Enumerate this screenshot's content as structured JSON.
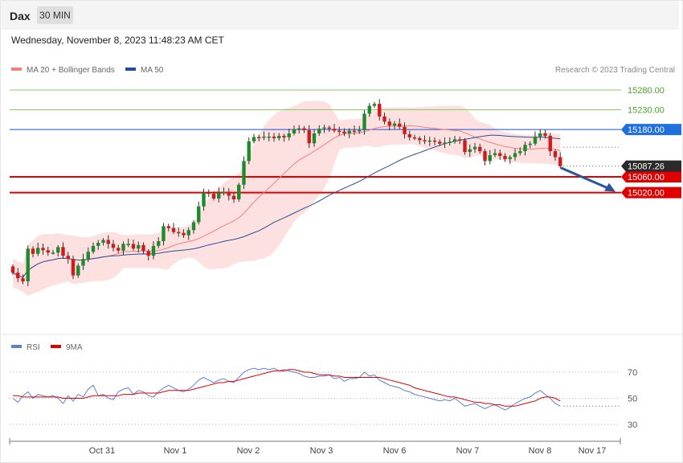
{
  "header": {
    "symbol": "Dax",
    "timeframe": "30 MIN"
  },
  "datetime": "Wednesday, November 8, 2023 11:48:23 AM CET",
  "credit": "Research © 2023 Trading Central",
  "legend_main": [
    {
      "label": "MA 20 + Bollinger Bands",
      "color": "#f08080"
    },
    {
      "label": "MA 50",
      "color": "#1f4e9c"
    }
  ],
  "legend_rsi": [
    {
      "label": "RSI",
      "color": "#5b7fd6"
    },
    {
      "label": "9MA",
      "color": "#e00000"
    }
  ],
  "colors": {
    "up": "#1e8a2e",
    "down": "#d21a1a",
    "band": "#fde0e0",
    "support": "#e00000",
    "resistance_green": "#8fca6a",
    "resistance_blue": "#1f4fd0"
  },
  "chart_data": [
    {
      "type": "candlestick",
      "x_ticks": [
        "Oct 31",
        "Nov 1",
        "Nov 2",
        "Nov 3",
        "Nov 6",
        "Nov 7",
        "Nov 8",
        "Nov 17"
      ],
      "ylim": [
        14760,
        15330
      ],
      "levels": [
        {
          "value": 15280,
          "label": "15280.00",
          "kind": "resistance"
        },
        {
          "value": 15230,
          "label": "15230.00",
          "kind": "resistance"
        },
        {
          "value": 15180,
          "label": "15180.00",
          "kind": "pivot"
        },
        {
          "value": 15060,
          "label": "15060.00",
          "kind": "support"
        },
        {
          "value": 15020,
          "label": "15020.00",
          "kind": "support"
        }
      ],
      "last_price": {
        "value": 15087.26,
        "label": "15087.26"
      },
      "forecast_arrow": {
        "from": 15087,
        "to": 15020
      },
      "closes": [
        14817,
        14803,
        14795,
        14878,
        14865,
        14880,
        14874,
        14868,
        14868,
        14882,
        14860,
        14852,
        14810,
        14835,
        14852,
        14870,
        14885,
        14893,
        14900,
        14890,
        14880,
        14873,
        14890,
        14890,
        14878,
        14887,
        14872,
        14860,
        14885,
        14897,
        14935,
        14930,
        14920,
        14918,
        14912,
        14925,
        14945,
        14985,
        15020,
        15017,
        15005,
        15020,
        15022,
        15012,
        15003,
        15040,
        15100,
        15150,
        15161,
        15160,
        15162,
        15162,
        15158,
        15164,
        15160,
        15170,
        15180,
        15183,
        15178,
        15145,
        15170,
        15182,
        15185,
        15182,
        15177,
        15175,
        15170,
        15177,
        15175,
        15178,
        15220,
        15240,
        15245,
        15213,
        15200,
        15190,
        15195,
        15187,
        15168,
        15160,
        15158,
        15153,
        15150,
        15152,
        15149,
        15144,
        15147,
        15149,
        15155,
        15153,
        15123,
        15130,
        15136,
        15125,
        15100,
        15115,
        15120,
        15113,
        15105,
        15110,
        15120,
        15125,
        15141,
        15144,
        15162,
        15170,
        15164,
        15125,
        15110,
        15087
      ],
      "rsi": {
        "ylim": [
          20,
          80
        ],
        "levels": [
          70,
          50,
          30
        ],
        "rsi_values": [
          50,
          47,
          52,
          55,
          50,
          53,
          52,
          51,
          52,
          50,
          46,
          52,
          48,
          53,
          51,
          57,
          60,
          52,
          53,
          50,
          49,
          55,
          57,
          58,
          53,
          56,
          55,
          52,
          51,
          55,
          58,
          60,
          58,
          56,
          55,
          57,
          60,
          64,
          66,
          64,
          62,
          64,
          65,
          63,
          62,
          66,
          70,
          72,
          73,
          72,
          73,
          72,
          73,
          71,
          72,
          71,
          70,
          69,
          67,
          66,
          66,
          67,
          67,
          68,
          65,
          66,
          63,
          65,
          65,
          66,
          70,
          67,
          68,
          64,
          62,
          60,
          59,
          58,
          56,
          55,
          53,
          52,
          51,
          50,
          49,
          48,
          49,
          48,
          50,
          47,
          44,
          45,
          46,
          44,
          42,
          44,
          45,
          43,
          41,
          43,
          46,
          48,
          50,
          51,
          54,
          56,
          53,
          50,
          46,
          44
        ],
        "ma_values": [
          52,
          52,
          51,
          51,
          51,
          51,
          51,
          51,
          51,
          51,
          50,
          50,
          50,
          50,
          50,
          51,
          52,
          52,
          52,
          52,
          52,
          52,
          53,
          53,
          53,
          54,
          54,
          54,
          54,
          54,
          55,
          56,
          56,
          56,
          56,
          56,
          57,
          58,
          59,
          60,
          61,
          62,
          62,
          63,
          63,
          64,
          65,
          66,
          67,
          68,
          69,
          70,
          71,
          71,
          71,
          72,
          72,
          71,
          70,
          70,
          69,
          68,
          68,
          68,
          67,
          67,
          66,
          66,
          66,
          66,
          66,
          66,
          66,
          66,
          65,
          64,
          63,
          62,
          61,
          60,
          58,
          57,
          56,
          55,
          54,
          53,
          52,
          51,
          51,
          50,
          49,
          48,
          47,
          47,
          46,
          46,
          45,
          45,
          44,
          44,
          44,
          45,
          46,
          47,
          48,
          50,
          51,
          51,
          50,
          48
        ]
      }
    }
  ]
}
